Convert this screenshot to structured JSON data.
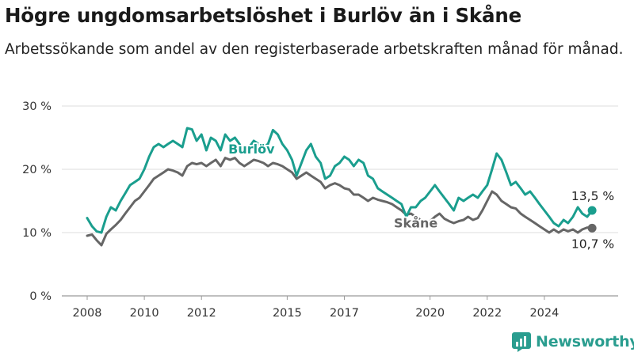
{
  "header": {
    "title": "Högre ungdomsarbetslöshet i Burlöv än i Skåne",
    "subtitle": "Arbetssökande som andel av den registerbaserade arbetskraften månad för månad."
  },
  "brand": {
    "name": "Newsworthy",
    "icon": "newsworthy-logo-icon",
    "color": "#2a9d8f"
  },
  "chart_data": {
    "type": "line",
    "ylim": [
      0,
      30
    ],
    "y_ticks": [
      0,
      10,
      20,
      30
    ],
    "y_tick_labels": [
      "0 %",
      "10 %",
      "20 %",
      "30 %"
    ],
    "xlim": [
      2008.0,
      2025.667
    ],
    "x_ticks": [
      2008,
      2010,
      2012,
      2015,
      2017,
      2020,
      2022,
      2024
    ],
    "x_tick_labels": [
      "2008",
      "2010",
      "2012",
      "2015",
      "2017",
      "2020",
      "2022",
      "2024"
    ],
    "grid": true,
    "series": [
      {
        "name": "Burlöv",
        "color": "#1a9e8e",
        "end_label": "13,5 %",
        "points": [
          [
            2008.0,
            12.3
          ],
          [
            2008.17,
            11.0
          ],
          [
            2008.33,
            10.2
          ],
          [
            2008.5,
            10.0
          ],
          [
            2008.67,
            12.5
          ],
          [
            2008.83,
            14.0
          ],
          [
            2009.0,
            13.5
          ],
          [
            2009.17,
            15.0
          ],
          [
            2009.33,
            16.2
          ],
          [
            2009.5,
            17.5
          ],
          [
            2009.67,
            18.0
          ],
          [
            2009.83,
            18.5
          ],
          [
            2010.0,
            20.0
          ],
          [
            2010.17,
            22.0
          ],
          [
            2010.33,
            23.5
          ],
          [
            2010.5,
            24.0
          ],
          [
            2010.67,
            23.5
          ],
          [
            2010.83,
            24.0
          ],
          [
            2011.0,
            24.5
          ],
          [
            2011.17,
            24.0
          ],
          [
            2011.33,
            23.5
          ],
          [
            2011.5,
            26.5
          ],
          [
            2011.67,
            26.3
          ],
          [
            2011.83,
            24.5
          ],
          [
            2012.0,
            25.5
          ],
          [
            2012.17,
            23.0
          ],
          [
            2012.33,
            25.0
          ],
          [
            2012.5,
            24.5
          ],
          [
            2012.67,
            23.0
          ],
          [
            2012.83,
            25.5
          ],
          [
            2013.0,
            24.5
          ],
          [
            2013.17,
            25.0
          ],
          [
            2013.33,
            24.0
          ],
          [
            2013.5,
            22.5
          ],
          [
            2013.67,
            23.5
          ],
          [
            2013.83,
            24.5
          ],
          [
            2014.0,
            24.0
          ],
          [
            2014.17,
            23.5
          ],
          [
            2014.33,
            24.0
          ],
          [
            2014.5,
            26.2
          ],
          [
            2014.67,
            25.5
          ],
          [
            2014.83,
            24.0
          ],
          [
            2015.0,
            23.0
          ],
          [
            2015.17,
            21.5
          ],
          [
            2015.33,
            19.0
          ],
          [
            2015.5,
            21.0
          ],
          [
            2015.67,
            23.0
          ],
          [
            2015.83,
            24.0
          ],
          [
            2016.0,
            22.0
          ],
          [
            2016.17,
            21.0
          ],
          [
            2016.33,
            18.5
          ],
          [
            2016.5,
            19.0
          ],
          [
            2016.67,
            20.5
          ],
          [
            2016.83,
            21.0
          ],
          [
            2017.0,
            22.0
          ],
          [
            2017.17,
            21.5
          ],
          [
            2017.33,
            20.5
          ],
          [
            2017.5,
            21.5
          ],
          [
            2017.67,
            21.0
          ],
          [
            2017.83,
            19.0
          ],
          [
            2018.0,
            18.5
          ],
          [
            2018.17,
            17.0
          ],
          [
            2018.33,
            16.5
          ],
          [
            2018.5,
            16.0
          ],
          [
            2018.67,
            15.5
          ],
          [
            2018.83,
            15.0
          ],
          [
            2019.0,
            14.5
          ],
          [
            2019.17,
            12.5
          ],
          [
            2019.33,
            14.0
          ],
          [
            2019.5,
            14.0
          ],
          [
            2019.67,
            15.0
          ],
          [
            2019.83,
            15.5
          ],
          [
            2020.0,
            16.5
          ],
          [
            2020.17,
            17.5
          ],
          [
            2020.33,
            16.5
          ],
          [
            2020.5,
            15.5
          ],
          [
            2020.67,
            14.5
          ],
          [
            2020.83,
            13.5
          ],
          [
            2021.0,
            15.5
          ],
          [
            2021.17,
            15.0
          ],
          [
            2021.33,
            15.5
          ],
          [
            2021.5,
            16.0
          ],
          [
            2021.67,
            15.5
          ],
          [
            2021.83,
            16.5
          ],
          [
            2022.0,
            17.5
          ],
          [
            2022.17,
            20.0
          ],
          [
            2022.33,
            22.5
          ],
          [
            2022.5,
            21.5
          ],
          [
            2022.67,
            19.5
          ],
          [
            2022.83,
            17.5
          ],
          [
            2023.0,
            18.0
          ],
          [
            2023.17,
            17.0
          ],
          [
            2023.33,
            16.0
          ],
          [
            2023.5,
            16.5
          ],
          [
            2023.67,
            15.5
          ],
          [
            2023.83,
            14.5
          ],
          [
            2024.0,
            13.5
          ],
          [
            2024.17,
            12.5
          ],
          [
            2024.33,
            11.5
          ],
          [
            2024.5,
            11.0
          ],
          [
            2024.67,
            12.0
          ],
          [
            2024.83,
            11.5
          ],
          [
            2025.0,
            12.5
          ],
          [
            2025.17,
            14.0
          ],
          [
            2025.33,
            13.0
          ],
          [
            2025.5,
            12.5
          ],
          [
            2025.67,
            13.5
          ]
        ]
      },
      {
        "name": "Skåne",
        "color": "#666666",
        "end_label": "10,7 %",
        "points": [
          [
            2008.0,
            9.5
          ],
          [
            2008.17,
            9.7
          ],
          [
            2008.33,
            8.8
          ],
          [
            2008.5,
            8.0
          ],
          [
            2008.67,
            9.8
          ],
          [
            2008.83,
            10.5
          ],
          [
            2009.0,
            11.2
          ],
          [
            2009.17,
            12.0
          ],
          [
            2009.33,
            13.0
          ],
          [
            2009.5,
            14.0
          ],
          [
            2009.67,
            15.0
          ],
          [
            2009.83,
            15.5
          ],
          [
            2010.0,
            16.5
          ],
          [
            2010.17,
            17.5
          ],
          [
            2010.33,
            18.5
          ],
          [
            2010.5,
            19.0
          ],
          [
            2010.67,
            19.5
          ],
          [
            2010.83,
            20.0
          ],
          [
            2011.0,
            19.8
          ],
          [
            2011.17,
            19.5
          ],
          [
            2011.33,
            19.0
          ],
          [
            2011.5,
            20.5
          ],
          [
            2011.67,
            21.0
          ],
          [
            2011.83,
            20.8
          ],
          [
            2012.0,
            21.0
          ],
          [
            2012.17,
            20.5
          ],
          [
            2012.33,
            21.0
          ],
          [
            2012.5,
            21.5
          ],
          [
            2012.67,
            20.5
          ],
          [
            2012.83,
            21.8
          ],
          [
            2013.0,
            21.5
          ],
          [
            2013.17,
            21.8
          ],
          [
            2013.33,
            21.0
          ],
          [
            2013.5,
            20.5
          ],
          [
            2013.67,
            21.0
          ],
          [
            2013.83,
            21.5
          ],
          [
            2014.0,
            21.3
          ],
          [
            2014.17,
            21.0
          ],
          [
            2014.33,
            20.5
          ],
          [
            2014.5,
            21.0
          ],
          [
            2014.67,
            20.8
          ],
          [
            2014.83,
            20.5
          ],
          [
            2015.0,
            20.0
          ],
          [
            2015.17,
            19.5
          ],
          [
            2015.33,
            18.5
          ],
          [
            2015.5,
            19.0
          ],
          [
            2015.67,
            19.5
          ],
          [
            2015.83,
            19.0
          ],
          [
            2016.0,
            18.5
          ],
          [
            2016.17,
            18.0
          ],
          [
            2016.33,
            17.0
          ],
          [
            2016.5,
            17.5
          ],
          [
            2016.67,
            17.8
          ],
          [
            2016.83,
            17.5
          ],
          [
            2017.0,
            17.0
          ],
          [
            2017.17,
            16.8
          ],
          [
            2017.33,
            16.0
          ],
          [
            2017.5,
            16.0
          ],
          [
            2017.67,
            15.5
          ],
          [
            2017.83,
            15.0
          ],
          [
            2018.0,
            15.5
          ],
          [
            2018.17,
            15.2
          ],
          [
            2018.33,
            15.0
          ],
          [
            2018.5,
            14.8
          ],
          [
            2018.67,
            14.5
          ],
          [
            2018.83,
            14.0
          ],
          [
            2019.0,
            13.5
          ],
          [
            2019.17,
            12.8
          ],
          [
            2019.33,
            13.0
          ],
          [
            2019.5,
            12.5
          ],
          [
            2019.67,
            12.0
          ],
          [
            2019.83,
            11.5
          ],
          [
            2020.0,
            11.8
          ],
          [
            2020.17,
            12.5
          ],
          [
            2020.33,
            13.0
          ],
          [
            2020.5,
            12.2
          ],
          [
            2020.67,
            11.8
          ],
          [
            2020.83,
            11.5
          ],
          [
            2021.0,
            11.8
          ],
          [
            2021.17,
            12.0
          ],
          [
            2021.33,
            12.5
          ],
          [
            2021.5,
            12.0
          ],
          [
            2021.67,
            12.3
          ],
          [
            2021.83,
            13.5
          ],
          [
            2022.0,
            15.0
          ],
          [
            2022.17,
            16.5
          ],
          [
            2022.33,
            16.0
          ],
          [
            2022.5,
            15.0
          ],
          [
            2022.67,
            14.5
          ],
          [
            2022.83,
            14.0
          ],
          [
            2023.0,
            13.8
          ],
          [
            2023.17,
            13.0
          ],
          [
            2023.33,
            12.5
          ],
          [
            2023.5,
            12.0
          ],
          [
            2023.67,
            11.5
          ],
          [
            2023.83,
            11.0
          ],
          [
            2024.0,
            10.5
          ],
          [
            2024.17,
            10.0
          ],
          [
            2024.33,
            10.5
          ],
          [
            2024.5,
            10.0
          ],
          [
            2024.67,
            10.5
          ],
          [
            2024.83,
            10.2
          ],
          [
            2025.0,
            10.5
          ],
          [
            2025.17,
            10.0
          ],
          [
            2025.33,
            10.5
          ],
          [
            2025.5,
            10.8
          ],
          [
            2025.67,
            10.7
          ]
        ]
      }
    ],
    "series_labels": [
      {
        "series": "Burlöv",
        "x": 2013.75,
        "y": 22.5
      },
      {
        "series": "Skåne",
        "x": 2019.5,
        "y": 10.8
      }
    ]
  }
}
